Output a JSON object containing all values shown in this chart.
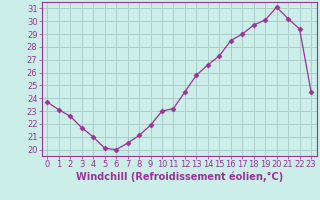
{
  "x": [
    0,
    1,
    2,
    3,
    4,
    5,
    6,
    7,
    8,
    9,
    10,
    11,
    12,
    13,
    14,
    15,
    16,
    17,
    18,
    19,
    20,
    21,
    22,
    23
  ],
  "y": [
    23.7,
    23.1,
    22.6,
    21.7,
    21.0,
    20.1,
    20.0,
    20.5,
    21.1,
    21.9,
    23.0,
    23.2,
    24.5,
    25.8,
    26.6,
    27.3,
    28.5,
    29.0,
    29.7,
    30.1,
    31.1,
    30.2,
    29.4,
    24.5
  ],
  "line_color": "#993399",
  "marker": "D",
  "marker_size": 2.5,
  "bg_color": "#cceee8",
  "grid_color": "#aacccc",
  "xlabel": "Windchill (Refroidissement éolien,°C)",
  "xlim": [
    -0.5,
    23.5
  ],
  "ylim": [
    19.5,
    31.5
  ],
  "yticks": [
    20,
    21,
    22,
    23,
    24,
    25,
    26,
    27,
    28,
    29,
    30,
    31
  ],
  "xticks": [
    0,
    1,
    2,
    3,
    4,
    5,
    6,
    7,
    8,
    9,
    10,
    11,
    12,
    13,
    14,
    15,
    16,
    17,
    18,
    19,
    20,
    21,
    22,
    23
  ],
  "tick_color": "#993399",
  "label_color": "#993399",
  "axis_color": "#993399",
  "font_size": 6,
  "xlabel_fontsize": 7
}
